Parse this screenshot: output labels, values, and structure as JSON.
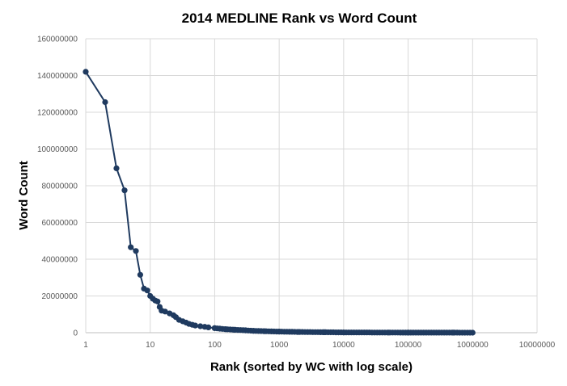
{
  "chart_data": {
    "type": "scatter",
    "title": "2014 MEDLINE Rank vs Word Count",
    "xlabel": "Rank (sorted by WC with log scale)",
    "ylabel": "Word Count",
    "x_scale": "log",
    "xlim": [
      1,
      10000000
    ],
    "ylim": [
      0,
      160000000
    ],
    "x_ticks": [
      "1",
      "10",
      "100",
      "1000",
      "10000",
      "100000",
      "1000000",
      "10000000"
    ],
    "y_ticks": [
      "0",
      "20000000",
      "40000000",
      "60000000",
      "80000000",
      "100000000",
      "120000000",
      "140000000",
      "160000000"
    ],
    "grid": true,
    "legend": "none",
    "series_color": "#1f3a5f",
    "series": [
      {
        "x": [
          1,
          2,
          3,
          4,
          5,
          6,
          7,
          8,
          9,
          10,
          11,
          12,
          13,
          14,
          15,
          17,
          20,
          23,
          25,
          28,
          32,
          36,
          40,
          45,
          50,
          60,
          70,
          80,
          100,
          120,
          150,
          200,
          300,
          400,
          600,
          1000,
          2000,
          5000,
          10000,
          50000,
          100000,
          500000,
          1000000
        ],
        "y": [
          142000000,
          125500000,
          89500000,
          77500000,
          46500000,
          44500000,
          31500000,
          24000000,
          23000000,
          20000000,
          18500000,
          17500000,
          17000000,
          14000000,
          12000000,
          11500000,
          10500000,
          9500000,
          8500000,
          7000000,
          6200000,
          5500000,
          4800000,
          4300000,
          3900000,
          3500000,
          3200000,
          2900000,
          2500000,
          2200000,
          1900000,
          1600000,
          1300000,
          1000000,
          800000,
          600000,
          400000,
          250000,
          150000,
          80000,
          50000,
          25000,
          15000
        ]
      }
    ]
  }
}
